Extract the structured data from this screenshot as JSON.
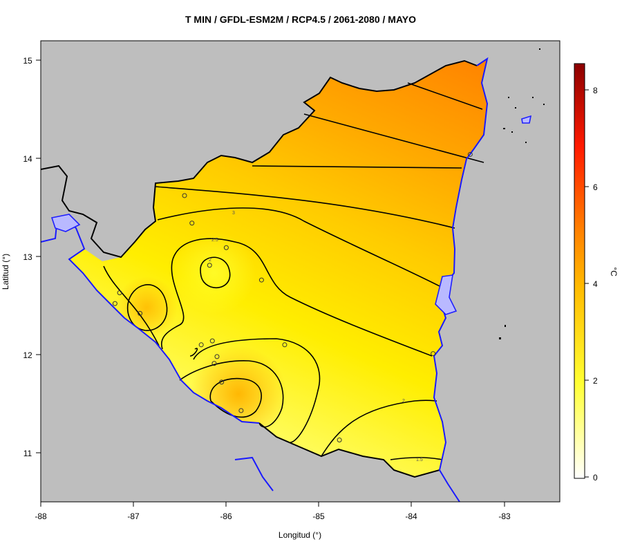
{
  "title": "T MIN / GFDL-ESM2M / RCP4.5 / 2061-2080 / MAYO",
  "axes": {
    "xlabel": "Longitud (°)",
    "ylabel": "Latitud (°)",
    "x_ticks": [
      "-88",
      "-87",
      "-86",
      "-85",
      "-84",
      "-83"
    ],
    "y_ticks": [
      "15",
      "14",
      "13",
      "12",
      "11"
    ],
    "xlim": [
      -88,
      -82.4
    ],
    "ylim": [
      10.5,
      15.2
    ]
  },
  "colorbar": {
    "label": "°C",
    "ticks": [
      "0",
      "2",
      "4",
      "6",
      "8"
    ],
    "range": [
      0,
      8.6
    ],
    "colors": [
      "#ffffff",
      "#ffff33",
      "#ffcc00",
      "#ff8800",
      "#ff2200",
      "#8b0000"
    ]
  },
  "colors": {
    "land_outside": "#bebebe",
    "coastline": "#1a1aff",
    "contour": "#000000"
  },
  "contour_labels": [
    "3",
    "2.5",
    "2",
    "2",
    "1.5"
  ],
  "stations": [
    {
      "lon": -86.45,
      "lat": 13.62
    },
    {
      "lon": -86.37,
      "lat": 13.34
    },
    {
      "lon": -86.0,
      "lat": 13.09
    },
    {
      "lon": -86.18,
      "lat": 12.91
    },
    {
      "lon": -85.62,
      "lat": 12.76
    },
    {
      "lon": -87.15,
      "lat": 12.63
    },
    {
      "lon": -87.2,
      "lat": 12.52
    },
    {
      "lon": -86.93,
      "lat": 12.42
    },
    {
      "lon": -86.27,
      "lat": 12.1
    },
    {
      "lon": -86.15,
      "lat": 12.14
    },
    {
      "lon": -85.37,
      "lat": 12.1
    },
    {
      "lon": -86.1,
      "lat": 11.98
    },
    {
      "lon": -86.13,
      "lat": 11.91
    },
    {
      "lon": -86.05,
      "lat": 11.72
    },
    {
      "lon": -85.84,
      "lat": 11.43
    },
    {
      "lon": -84.78,
      "lat": 11.13
    },
    {
      "lon": -83.77,
      "lat": 12.01
    },
    {
      "lon": -83.37,
      "lat": 14.04
    }
  ]
}
